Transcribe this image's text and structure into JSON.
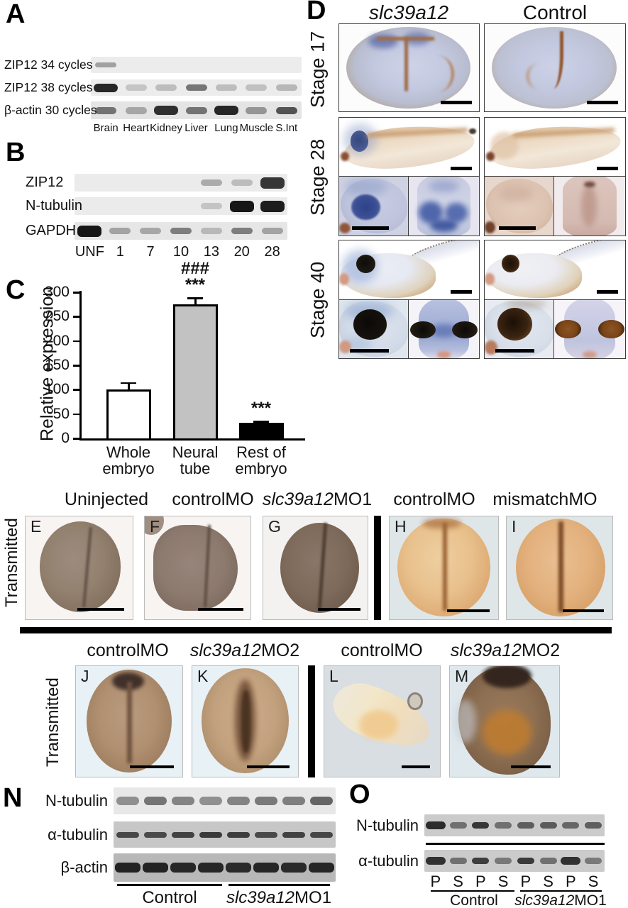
{
  "panel_a": {
    "letter": "A",
    "rows": [
      {
        "label": "ZIP12 34 cycles",
        "bands": [
          0.35,
          0,
          0,
          0,
          0,
          0,
          0
        ]
      },
      {
        "label": "ZIP12 38 cycles",
        "bands": [
          0.92,
          0.18,
          0.22,
          0.55,
          0.22,
          0.2,
          0.25
        ]
      },
      {
        "label": "β-actin 30 cycles",
        "bands": [
          0.55,
          0.3,
          0.88,
          0.55,
          0.92,
          0.38,
          0.7
        ]
      }
    ],
    "lanes": [
      "Brain",
      "Heart",
      "Kidney",
      "Liver",
      "Lung",
      "Muscle",
      "S.Int"
    ]
  },
  "panel_b": {
    "letter": "B",
    "rows": [
      {
        "label": "ZIP12",
        "bands": [
          0,
          0,
          0,
          0,
          0.3,
          0.22,
          0.85
        ]
      },
      {
        "label": "N-tubulin",
        "bands": [
          0,
          0,
          0,
          0,
          0.18,
          1,
          0.97
        ]
      },
      {
        "label": "GAPDH",
        "bands": [
          1,
          0.32,
          0.3,
          0.5,
          0.22,
          0.5,
          0.32
        ]
      }
    ],
    "lanes": [
      "UNF",
      "1",
      "7",
      "10",
      "13",
      "20",
      "28"
    ]
  },
  "panel_c": {
    "letter": "C",
    "chart_data": {
      "type": "bar",
      "categories": [
        "Whole\nembryo",
        "Neural\ntube",
        "Rest of\nembryo"
      ],
      "values": [
        100,
        275,
        32
      ],
      "errors": [
        14,
        13,
        3
      ],
      "bar_colors": [
        "#ffffff",
        "#c2c2c2",
        "#000000"
      ],
      "annotations": [
        "",
        "###\n***",
        "***"
      ],
      "ylabel": "Relative expression",
      "yticks": [
        0,
        50,
        100,
        150,
        200,
        250,
        300
      ],
      "ylim": [
        0,
        300
      ],
      "grid": false,
      "legend": null
    }
  },
  "panel_d": {
    "letter": "D",
    "col_headers": [
      "slc39a12",
      "Control"
    ],
    "row_headers": [
      "Stage 17",
      "Stage 28",
      "Stage 40"
    ]
  },
  "row_ei": {
    "side_label": "Transmitted",
    "items": [
      {
        "letter": "E",
        "header": "Uninjected"
      },
      {
        "letter": "F",
        "header": "controlMO"
      },
      {
        "letter": "G",
        "header": "slc39a12MO1"
      },
      {
        "letter": "H",
        "header": "controlMO"
      },
      {
        "letter": "I",
        "header": "mismatchMO"
      }
    ]
  },
  "row_jm": {
    "side_label": "Transmitted",
    "items": [
      {
        "letter": "J",
        "header": "controlMO"
      },
      {
        "letter": "K",
        "header": "slc39a12MO2"
      },
      {
        "letter": "L",
        "header": "controlMO"
      },
      {
        "letter": "M",
        "header": "slc39a12MO2"
      }
    ]
  },
  "panel_n": {
    "letter": "N",
    "rows": [
      {
        "label": "N-tubulin",
        "bands": [
          0.42,
          0.55,
          0.48,
          0.42,
          0.48,
          0.52,
          0.5,
          0.62
        ]
      },
      {
        "label": "α-tubulin",
        "bands": [
          0.72,
          0.7,
          0.75,
          0.8,
          0.78,
          0.7,
          0.75,
          0.72
        ]
      },
      {
        "label": "β-actin",
        "bands": [
          0.92,
          0.92,
          0.9,
          0.9,
          0.88,
          0.9,
          0.88,
          0.9
        ]
      }
    ],
    "groups": [
      "Control",
      "slc39a12MO1"
    ]
  },
  "panel_o": {
    "letter": "O",
    "rows": [
      {
        "label": "N-tubulin",
        "bands": [
          0.88,
          0.5,
          0.82,
          0.5,
          0.6,
          0.62,
          0.55,
          0.6
        ]
      },
      {
        "label": "α-tubulin",
        "bands": [
          0.85,
          0.5,
          0.78,
          0.45,
          0.8,
          0.5,
          0.85,
          0.45
        ]
      }
    ],
    "lanes": [
      "P",
      "S",
      "P",
      "S",
      "P",
      "S",
      "P",
      "S"
    ],
    "groups": [
      "Control",
      "slc39a12MO1"
    ]
  }
}
